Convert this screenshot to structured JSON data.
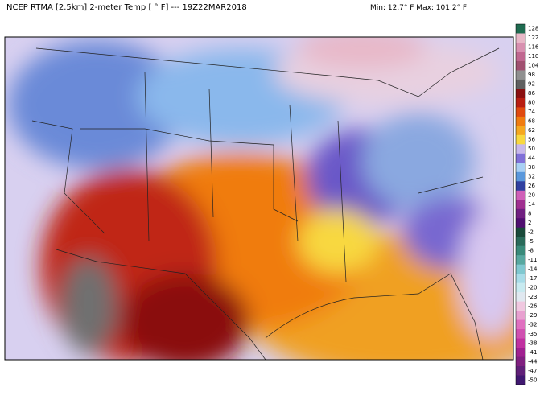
{
  "header": {
    "title": "NCEP RTMA [2.5km] 2-meter Temp [ ° F]  --- 19Z22MAR2018",
    "stats": "Min: 12.7° F Max: 101.2° F"
  },
  "colorbar": {
    "labels": [
      128,
      122,
      116,
      110,
      104,
      98,
      92,
      86,
      80,
      74,
      68,
      62,
      56,
      50,
      44,
      38,
      32,
      26,
      20,
      14,
      8,
      2,
      -2,
      -5,
      -8,
      -11,
      -14,
      -17,
      -20,
      -23,
      -26,
      -29,
      -32,
      -35,
      -38,
      -41,
      -44,
      -47,
      -50
    ],
    "colors": [
      "#1f6b50",
      "#e8b8c8",
      "#d890b0",
      "#c06890",
      "#a05070",
      "#909090",
      "#606060",
      "#8a1010",
      "#b81e12",
      "#e04a10",
      "#f07c10",
      "#f5a820",
      "#f8d840",
      "#c8b8ec",
      "#8070d8",
      "#a8d0f4",
      "#5a98dc",
      "#3040a0",
      "#d060b8",
      "#a03090",
      "#702080",
      "#501070",
      "#1a4a3a",
      "#2a6a5a",
      "#3a8a7a",
      "#58a8a0",
      "#80c8d0",
      "#a8dce8",
      "#c8eaf0",
      "#e0e8f0",
      "#f0c8e0",
      "#e8a0d0",
      "#e070c0",
      "#d050b0",
      "#c030a0",
      "#a02090",
      "#802080",
      "#602078",
      "#401870"
    ]
  }
}
